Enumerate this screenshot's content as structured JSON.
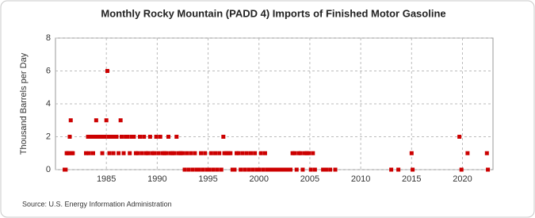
{
  "chart_data": {
    "type": "scatter",
    "title": "Monthly Rocky Mountain (PADD 4) Imports of Finished Motor Gasoline",
    "y_label": "Thousand Barrels per Day",
    "source": "Source: U.S. Energy Information Administration",
    "xlim": [
      1980,
      2023
    ],
    "xticks": [
      1985,
      1990,
      1995,
      2000,
      2005,
      2010,
      2015,
      2020
    ],
    "ylim": [
      0,
      8
    ],
    "yticks": [
      0,
      2,
      4,
      6,
      8
    ],
    "grid": true,
    "color": "#cc0000",
    "x": [
      1980.9,
      1981.0,
      1981.1,
      1981.2,
      1981.3,
      1981.4,
      1981.5,
      1981.6,
      1981.7,
      1983.0,
      1983.2,
      1983.3,
      1983.5,
      1983.7,
      1983.8,
      1984.0,
      1984.1,
      1984.3,
      1984.5,
      1984.6,
      1984.8,
      1985.0,
      1985.1,
      1985.2,
      1985.3,
      1985.5,
      1985.7,
      1985.8,
      1986.0,
      1986.2,
      1986.4,
      1986.5,
      1986.7,
      1986.9,
      1987.1,
      1987.3,
      1987.5,
      1987.7,
      1987.9,
      1988.1,
      1988.3,
      1988.5,
      1988.7,
      1988.9,
      1989.1,
      1989.3,
      1989.5,
      1989.7,
      1989.9,
      1990.1,
      1990.3,
      1990.5,
      1990.7,
      1990.9,
      1991.1,
      1991.3,
      1991.5,
      1991.7,
      1991.9,
      1992.1,
      1992.3,
      1992.5,
      1992.7,
      1992.9,
      1993.1,
      1993.3,
      1993.5,
      1993.7,
      1993.9,
      1994.1,
      1994.3,
      1994.5,
      1994.7,
      1994.9,
      1995.1,
      1995.3,
      1995.5,
      1995.7,
      1995.9,
      1996.1,
      1996.3,
      1996.5,
      1996.6,
      1996.8,
      1997.0,
      1997.2,
      1997.4,
      1997.6,
      1997.8,
      1998.0,
      1998.2,
      1998.4,
      1998.6,
      1998.8,
      1999.0,
      1999.2,
      1999.4,
      1999.6,
      1999.8,
      2000.0,
      2000.2,
      2000.4,
      2000.6,
      2000.8,
      2001.0,
      2001.3,
      2001.6,
      2001.9,
      2002.2,
      2002.5,
      2002.8,
      2003.1,
      2003.3,
      2003.5,
      2003.7,
      2003.9,
      2004.1,
      2004.3,
      2004.5,
      2004.7,
      2004.9,
      2005.1,
      2005.3,
      2005.5,
      2006.3,
      2006.6,
      2007.0,
      2007.5,
      2013.0,
      2013.7,
      2015.0,
      2015.1,
      2019.7,
      2019.9,
      2020.5,
      2022.4,
      2022.5
    ],
    "values": [
      0,
      0,
      1,
      1,
      1,
      2,
      3,
      1,
      1,
      1,
      2,
      1,
      2,
      1,
      2,
      3,
      2,
      2,
      2,
      1,
      2,
      3,
      6,
      2,
      1,
      2,
      1,
      2,
      2,
      1,
      3,
      2,
      1,
      2,
      2,
      1,
      2,
      2,
      1,
      1,
      2,
      1,
      2,
      1,
      1,
      2,
      1,
      1,
      2,
      1,
      2,
      1,
      1,
      1,
      2,
      1,
      1,
      1,
      2,
      1,
      1,
      1,
      0,
      1,
      0,
      1,
      0,
      1,
      0,
      0,
      1,
      0,
      1,
      0,
      0,
      1,
      0,
      1,
      0,
      1,
      0,
      2,
      1,
      1,
      1,
      1,
      0,
      0,
      1,
      1,
      0,
      1,
      0,
      1,
      0,
      1,
      0,
      1,
      0,
      0,
      1,
      0,
      1,
      0,
      0,
      0,
      0,
      0,
      0,
      0,
      0,
      0,
      1,
      1,
      0,
      1,
      1,
      0,
      1,
      1,
      1,
      0,
      1,
      0,
      0,
      0,
      0,
      0,
      0,
      0,
      1,
      0,
      2,
      0,
      1,
      1,
      0
    ]
  }
}
